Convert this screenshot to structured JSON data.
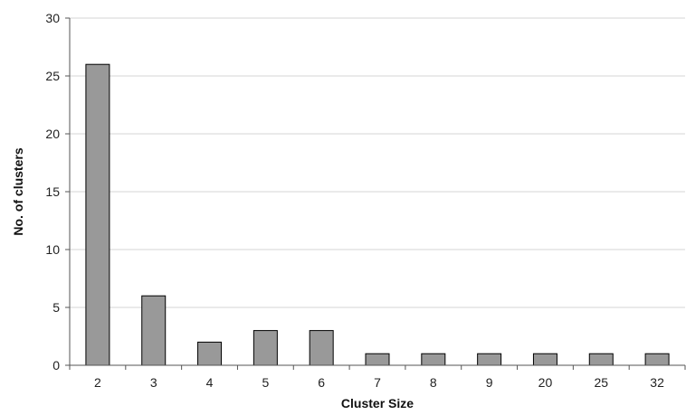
{
  "chart_data": {
    "type": "bar",
    "title": "",
    "xlabel": "Cluster Size",
    "ylabel": "No. of clusters",
    "categories": [
      "2",
      "3",
      "4",
      "5",
      "6",
      "7",
      "8",
      "9",
      "20",
      "25",
      "32"
    ],
    "values": [
      26,
      6,
      2,
      3,
      3,
      1,
      1,
      1,
      1,
      1,
      1
    ],
    "ylim": [
      0,
      30
    ],
    "yticks": [
      0,
      5,
      10,
      15,
      20,
      25,
      30
    ],
    "grid": "horizontal",
    "legend": "none",
    "colors": {
      "bar_fill": "#999999",
      "bar_stroke": "#000000",
      "grid": "#d4d4d4",
      "axis": "#555555"
    }
  }
}
